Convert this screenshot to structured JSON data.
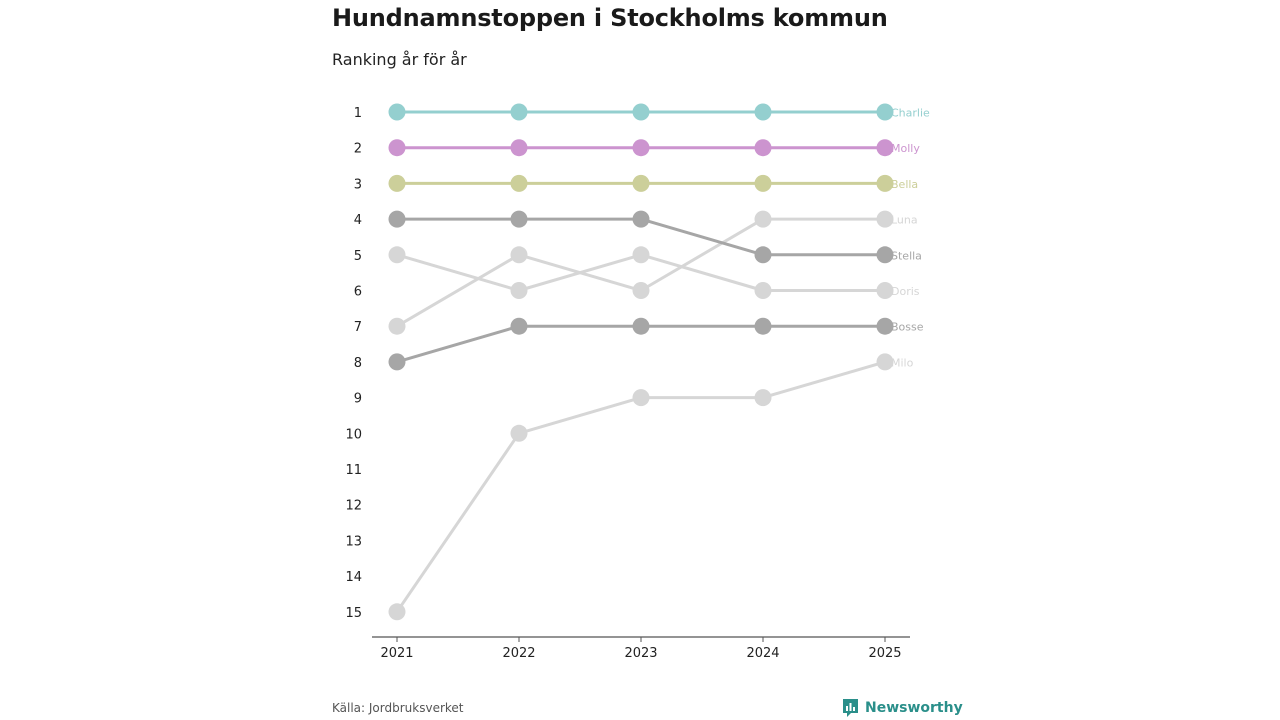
{
  "header": {
    "title": "Hundnamnstoppen i Stockholms kommun",
    "subtitle": "Ranking år för år"
  },
  "footer": {
    "source": "Källa: Jordbruksverket",
    "brand": "Newsworthy"
  },
  "chart_data": {
    "type": "line",
    "title": "Hundnamnstoppen i Stockholms kommun",
    "subtitle": "Ranking år för år",
    "xlabel": "",
    "ylabel": "",
    "categories": [
      "2021",
      "2022",
      "2023",
      "2024",
      "2025"
    ],
    "y_ticks": [
      "1",
      "2",
      "3",
      "4",
      "5",
      "6",
      "7",
      "8",
      "9",
      "10",
      "11",
      "12",
      "13",
      "14",
      "15"
    ],
    "ylim": [
      1,
      15
    ],
    "y_inverted": true,
    "grid": false,
    "series": [
      {
        "name": "Charlie",
        "values": [
          1,
          1,
          1,
          1,
          1
        ],
        "color": "#94cfcf"
      },
      {
        "name": "Molly",
        "values": [
          2,
          2,
          2,
          2,
          2
        ],
        "color": "#cc94cf"
      },
      {
        "name": "Bella",
        "values": [
          3,
          3,
          3,
          3,
          3
        ],
        "color": "#cccf9a"
      },
      {
        "name": "Luna",
        "values": [
          7,
          5,
          6,
          4,
          4
        ],
        "color": "#d6d6d6"
      },
      {
        "name": "Stella",
        "values": [
          4,
          4,
          4,
          5,
          5
        ],
        "color": "#a6a6a6"
      },
      {
        "name": "Doris",
        "values": [
          5,
          6,
          5,
          6,
          6
        ],
        "color": "#d6d6d6"
      },
      {
        "name": "Bosse",
        "values": [
          8,
          7,
          7,
          7,
          7
        ],
        "color": "#a6a6a6"
      },
      {
        "name": "Milo",
        "values": [
          15,
          10,
          9,
          9,
          8
        ],
        "color": "#d6d6d6"
      }
    ],
    "axis_color": "#555555"
  }
}
